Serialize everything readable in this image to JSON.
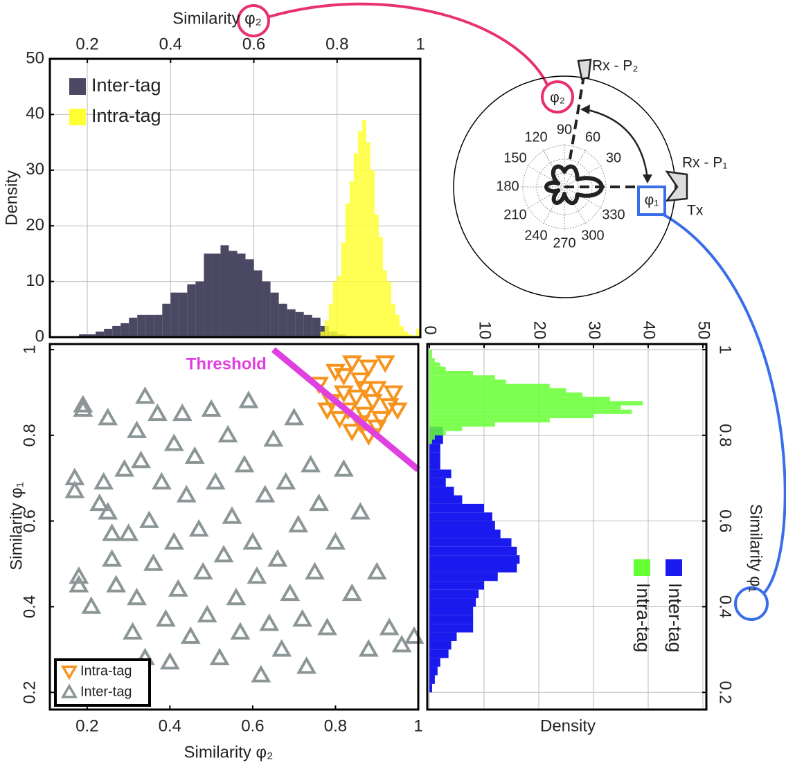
{
  "chart_data": [
    {
      "type": "histogram",
      "orientation": "vertical",
      "xlabel": "Similarity φ₂",
      "ylabel": "Density",
      "xlim": [
        0.11,
        1
      ],
      "xticks": [
        0.2,
        0.4,
        0.6,
        0.8,
        1
      ],
      "ylim": [
        0,
        50
      ],
      "yticks": [
        0,
        10,
        20,
        30,
        40,
        50
      ],
      "grid": true,
      "legend": "upper left",
      "series": [
        {
          "name": "Inter-tag",
          "color": "#4a4862",
          "bins": [
            0.18,
            0.2,
            0.22,
            0.24,
            0.26,
            0.28,
            0.3,
            0.32,
            0.34,
            0.36,
            0.38,
            0.4,
            0.42,
            0.44,
            0.46,
            0.48,
            0.5,
            0.52,
            0.54,
            0.56,
            0.58,
            0.6,
            0.62,
            0.64,
            0.66,
            0.68,
            0.7,
            0.72,
            0.74,
            0.76,
            0.78,
            0.8,
            0.82
          ],
          "values": [
            0.5,
            0.5,
            1,
            1.5,
            2,
            2.5,
            3.5,
            4,
            4,
            4,
            6,
            8,
            8,
            9.5,
            10,
            15,
            15,
            16.5,
            15.5,
            15,
            14,
            12,
            10,
            8,
            6,
            5,
            4.5,
            4,
            3.5,
            2,
            1,
            0.5
          ]
        },
        {
          "name": "Intra-tag",
          "color": "#ffff33",
          "bins": [
            0.76,
            0.77,
            0.78,
            0.79,
            0.8,
            0.81,
            0.82,
            0.83,
            0.84,
            0.85,
            0.86,
            0.87,
            0.88,
            0.89,
            0.9,
            0.91,
            0.92,
            0.93,
            0.94,
            0.95,
            0.96,
            0.97,
            0.98,
            0.99,
            1.0
          ],
          "values": [
            1,
            3,
            6,
            10,
            11,
            17,
            24,
            28,
            33,
            37,
            39,
            35,
            30,
            22,
            18,
            12,
            10,
            6,
            4,
            2,
            1,
            0.5,
            0.3,
            1.5
          ]
        }
      ]
    },
    {
      "type": "scatter",
      "xlabel": "Similarity φ₂",
      "ylabel": "Similarity φ₁",
      "xlim": [
        0.11,
        1
      ],
      "xticks": [
        0.2,
        0.4,
        0.6,
        0.8,
        1
      ],
      "ylim": [
        0.16,
        1.013
      ],
      "yticks": [
        0.2,
        0.4,
        0.6,
        0.8,
        1
      ],
      "grid": false,
      "legend": "lower left",
      "threshold": {
        "label": "Threshold",
        "color": "#e040e0",
        "x": [
          0.65,
          1.0
        ],
        "y": [
          1.0,
          0.72
        ]
      },
      "series": [
        {
          "name": "Intra-tag",
          "color": "#f7941d",
          "marker": "triangle-down",
          "x": [
            0.76,
            0.78,
            0.8,
            0.82,
            0.84,
            0.86,
            0.88,
            0.9,
            0.92,
            0.79,
            0.81,
            0.83,
            0.85,
            0.87,
            0.89,
            0.91,
            0.93,
            0.95,
            0.84,
            0.86,
            0.88,
            0.9,
            0.82,
            0.94,
            0.87
          ],
          "y": [
            0.92,
            0.86,
            0.95,
            0.9,
            0.97,
            0.93,
            0.96,
            0.91,
            0.97,
            0.88,
            0.84,
            0.86,
            0.89,
            0.85,
            0.88,
            0.84,
            0.87,
            0.86,
            0.81,
            0.83,
            0.8,
            0.82,
            0.94,
            0.9,
            0.91
          ]
        },
        {
          "name": "Inter-tag",
          "color": "#8c9696",
          "marker": "triangle-up",
          "x": [
            0.17,
            0.17,
            0.18,
            0.18,
            0.19,
            0.19,
            0.21,
            0.23,
            0.24,
            0.25,
            0.25,
            0.26,
            0.26,
            0.27,
            0.29,
            0.3,
            0.31,
            0.32,
            0.32,
            0.33,
            0.34,
            0.34,
            0.35,
            0.36,
            0.37,
            0.38,
            0.39,
            0.4,
            0.41,
            0.41,
            0.42,
            0.43,
            0.44,
            0.45,
            0.46,
            0.47,
            0.48,
            0.49,
            0.5,
            0.51,
            0.52,
            0.53,
            0.54,
            0.55,
            0.56,
            0.57,
            0.58,
            0.59,
            0.6,
            0.61,
            0.62,
            0.63,
            0.64,
            0.65,
            0.66,
            0.67,
            0.68,
            0.69,
            0.7,
            0.71,
            0.72,
            0.73,
            0.74,
            0.75,
            0.76,
            0.78,
            0.8,
            0.82,
            0.84,
            0.86,
            0.88,
            0.9,
            0.93,
            0.96,
            0.99
          ],
          "y": [
            0.7,
            0.67,
            0.47,
            0.45,
            0.87,
            0.86,
            0.4,
            0.64,
            0.69,
            0.84,
            0.62,
            0.57,
            0.51,
            0.45,
            0.72,
            0.57,
            0.34,
            0.81,
            0.42,
            0.74,
            0.89,
            0.28,
            0.6,
            0.5,
            0.85,
            0.69,
            0.37,
            0.27,
            0.78,
            0.55,
            0.44,
            0.85,
            0.66,
            0.33,
            0.75,
            0.58,
            0.48,
            0.38,
            0.86,
            0.69,
            0.28,
            0.52,
            0.8,
            0.61,
            0.42,
            0.34,
            0.73,
            0.88,
            0.55,
            0.47,
            0.24,
            0.66,
            0.36,
            0.79,
            0.51,
            0.3,
            0.69,
            0.43,
            0.84,
            0.59,
            0.37,
            0.26,
            0.73,
            0.48,
            0.64,
            0.35,
            0.55,
            0.72,
            0.43,
            0.62,
            0.3,
            0.48,
            0.35,
            0.31,
            0.33
          ]
        }
      ]
    },
    {
      "type": "histogram",
      "orientation": "horizontal",
      "xlabel": "Density",
      "ylabel": "Similarity φ₁",
      "xlim": [
        0,
        50
      ],
      "xticks": [
        0,
        10,
        20,
        30,
        40,
        50
      ],
      "ylim": [
        0.16,
        1.013
      ],
      "yticks": [
        0.2,
        0.4,
        0.6,
        0.8,
        1
      ],
      "grid": true,
      "legend": "lower right",
      "series": [
        {
          "name": "Inter-tag",
          "color": "#1a1aee",
          "bins": [
            0.2,
            0.22,
            0.24,
            0.26,
            0.28,
            0.3,
            0.32,
            0.34,
            0.36,
            0.38,
            0.4,
            0.42,
            0.44,
            0.46,
            0.48,
            0.5,
            0.52,
            0.54,
            0.56,
            0.58,
            0.6,
            0.62,
            0.64,
            0.66,
            0.68,
            0.7,
            0.72,
            0.74,
            0.76,
            0.78,
            0.8,
            0.82
          ],
          "values": [
            0.5,
            1,
            1.5,
            2,
            3.5,
            4,
            5,
            8,
            8,
            8,
            8.5,
            9,
            10,
            12.5,
            16,
            16.5,
            16,
            15,
            13,
            12,
            11.5,
            10,
            6,
            4.5,
            3,
            4,
            2,
            2,
            2,
            2.5,
            2.5
          ]
        },
        {
          "name": "Intra-tag",
          "color": "#66ff33",
          "bins": [
            0.78,
            0.79,
            0.8,
            0.81,
            0.82,
            0.83,
            0.84,
            0.85,
            0.86,
            0.87,
            0.88,
            0.89,
            0.9,
            0.91,
            0.92,
            0.93,
            0.94,
            0.95,
            0.96,
            0.97,
            0.98,
            0.99,
            1.0
          ],
          "values": [
            0.5,
            1,
            3,
            6,
            12,
            22,
            30,
            37,
            35,
            39,
            33,
            28,
            25,
            22,
            14,
            12,
            8,
            3,
            2,
            1,
            0.5,
            0.5
          ]
        }
      ]
    },
    {
      "type": "polar",
      "thetaticks": [
        30,
        60,
        90,
        120,
        150,
        180,
        210,
        240,
        270,
        300,
        330
      ],
      "labels": [
        "Rx - P₂",
        "Rx - P₁",
        "Tx",
        "φ₂",
        "φ₁"
      ]
    }
  ]
}
